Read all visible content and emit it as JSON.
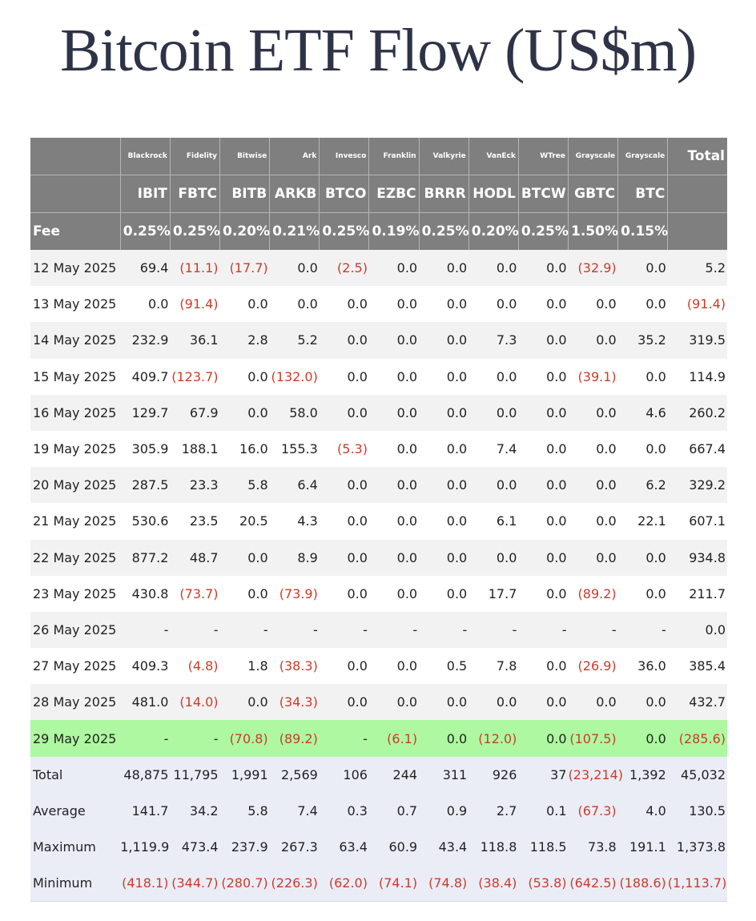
{
  "title": "Bitcoin ETF Flow (US$m)",
  "header": {
    "issuers": [
      "Blackrock",
      "Fidelity",
      "Bitwise",
      "Ark",
      "Invesco",
      "Franklin",
      "Valkyrie",
      "VanEck",
      "WTree",
      "Grayscale",
      "Grayscale"
    ],
    "total_label": "Total",
    "tickers": [
      "IBIT",
      "FBTC",
      "BITB",
      "ARKB",
      "BTCO",
      "EZBC",
      "BRRR",
      "HODL",
      "BTCW",
      "GBTC",
      "BTC"
    ],
    "fee_label": "Fee",
    "fees": [
      "0.25%",
      "0.25%",
      "0.20%",
      "0.21%",
      "0.25%",
      "0.19%",
      "0.25%",
      "0.20%",
      "0.25%",
      "1.50%",
      "0.15%"
    ]
  },
  "rows": [
    {
      "date": "12 May 2025",
      "values": [
        "69.4",
        "(11.1)",
        "(17.7)",
        "0.0",
        "(2.5)",
        "0.0",
        "0.0",
        "0.0",
        "0.0",
        "(32.9)",
        "0.0"
      ],
      "total": "5.2"
    },
    {
      "date": "13 May 2025",
      "values": [
        "0.0",
        "(91.4)",
        "0.0",
        "0.0",
        "0.0",
        "0.0",
        "0.0",
        "0.0",
        "0.0",
        "0.0",
        "0.0"
      ],
      "total": "(91.4)"
    },
    {
      "date": "14 May 2025",
      "values": [
        "232.9",
        "36.1",
        "2.8",
        "5.2",
        "0.0",
        "0.0",
        "0.0",
        "7.3",
        "0.0",
        "0.0",
        "35.2"
      ],
      "total": "319.5"
    },
    {
      "date": "15 May 2025",
      "values": [
        "409.7",
        "(123.7)",
        "0.0",
        "(132.0)",
        "0.0",
        "0.0",
        "0.0",
        "0.0",
        "0.0",
        "(39.1)",
        "0.0"
      ],
      "total": "114.9"
    },
    {
      "date": "16 May 2025",
      "values": [
        "129.7",
        "67.9",
        "0.0",
        "58.0",
        "0.0",
        "0.0",
        "0.0",
        "0.0",
        "0.0",
        "0.0",
        "4.6"
      ],
      "total": "260.2"
    },
    {
      "date": "19 May 2025",
      "values": [
        "305.9",
        "188.1",
        "16.0",
        "155.3",
        "(5.3)",
        "0.0",
        "0.0",
        "7.4",
        "0.0",
        "0.0",
        "0.0"
      ],
      "total": "667.4"
    },
    {
      "date": "20 May 2025",
      "values": [
        "287.5",
        "23.3",
        "5.8",
        "6.4",
        "0.0",
        "0.0",
        "0.0",
        "0.0",
        "0.0",
        "0.0",
        "6.2"
      ],
      "total": "329.2"
    },
    {
      "date": "21 May 2025",
      "values": [
        "530.6",
        "23.5",
        "20.5",
        "4.3",
        "0.0",
        "0.0",
        "0.0",
        "6.1",
        "0.0",
        "0.0",
        "22.1"
      ],
      "total": "607.1"
    },
    {
      "date": "22 May 2025",
      "values": [
        "877.2",
        "48.7",
        "0.0",
        "8.9",
        "0.0",
        "0.0",
        "0.0",
        "0.0",
        "0.0",
        "0.0",
        "0.0"
      ],
      "total": "934.8"
    },
    {
      "date": "23 May 2025",
      "values": [
        "430.8",
        "(73.7)",
        "0.0",
        "(73.9)",
        "0.0",
        "0.0",
        "0.0",
        "17.7",
        "0.0",
        "(89.2)",
        "0.0"
      ],
      "total": "211.7"
    },
    {
      "date": "26 May 2025",
      "values": [
        "-",
        "-",
        "-",
        "-",
        "-",
        "-",
        "-",
        "-",
        "-",
        "-",
        "-"
      ],
      "total": "0.0"
    },
    {
      "date": "27 May 2025",
      "values": [
        "409.3",
        "(4.8)",
        "1.8",
        "(38.3)",
        "0.0",
        "0.0",
        "0.5",
        "7.8",
        "0.0",
        "(26.9)",
        "36.0"
      ],
      "total": "385.4"
    },
    {
      "date": "28 May 2025",
      "values": [
        "481.0",
        "(14.0)",
        "0.0",
        "(34.3)",
        "0.0",
        "0.0",
        "0.0",
        "0.0",
        "0.0",
        "0.0",
        "0.0"
      ],
      "total": "432.7"
    },
    {
      "date": "29 May 2025",
      "values": [
        "-",
        "-",
        "(70.8)",
        "(89.2)",
        "-",
        "(6.1)",
        "0.0",
        "(12.0)",
        "0.0",
        "(107.5)",
        "0.0"
      ],
      "total": "(285.6)",
      "highlight": true
    },
    {
      "date": "Total",
      "values": [
        "48,875",
        "11,795",
        "1,991",
        "2,569",
        "106",
        "244",
        "311",
        "926",
        "37",
        "(23,214)",
        "1,392"
      ],
      "total": "45,032",
      "summary": true
    },
    {
      "date": "Average",
      "values": [
        "141.7",
        "34.2",
        "5.8",
        "7.4",
        "0.3",
        "0.7",
        "0.9",
        "2.7",
        "0.1",
        "(67.3)",
        "4.0"
      ],
      "total": "130.5",
      "summary": true
    },
    {
      "date": "Maximum",
      "values": [
        "1,119.9",
        "473.4",
        "237.9",
        "267.3",
        "63.4",
        "60.9",
        "43.4",
        "118.8",
        "118.5",
        "73.8",
        "191.1"
      ],
      "total": "1,373.8",
      "summary": true
    },
    {
      "date": "Minimum",
      "values": [
        "(418.1)",
        "(344.7)",
        "(280.7)",
        "(226.3)",
        "(62.0)",
        "(74.1)",
        "(74.8)",
        "(38.4)",
        "(53.8)",
        "(642.5)",
        "(188.6)"
      ],
      "total": "(1,113.7)",
      "summary": true
    }
  ],
  "colors": {
    "header_bg": "#7f7f7f",
    "negative": "#cc3b2a",
    "highlight_row": "#adf8a0",
    "summary_row": "#eaedf6",
    "title": "#2e3347"
  }
}
